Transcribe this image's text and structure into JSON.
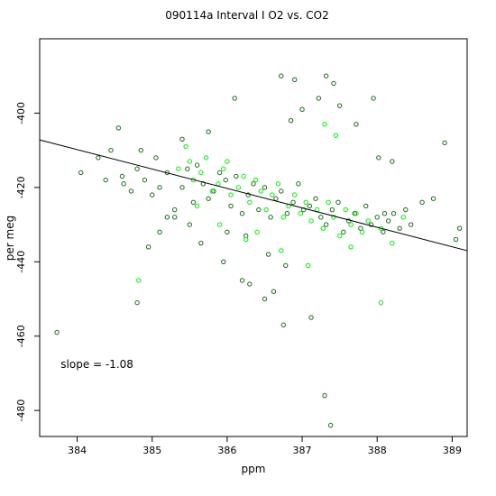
{
  "chart_data": {
    "type": "scatter",
    "title": "090114a   Interval I O2 vs. CO2",
    "xlabel": "ppm",
    "ylabel": "per meg",
    "xlim": [
      383.5,
      389.2
    ],
    "ylim": [
      -487,
      -380
    ],
    "xticks": [
      384,
      385,
      386,
      387,
      388,
      389
    ],
    "yticks": [
      -400,
      -420,
      -440,
      -460,
      -480
    ],
    "xtick_labels": [
      "384",
      "385",
      "386",
      "387",
      "388",
      "389"
    ],
    "ytick_labels": [
      "-400",
      "-420",
      "-440",
      "-460",
      "-480"
    ],
    "grid": false,
    "marker": "open-circle",
    "series": [
      {
        "color": "#1a6b1a",
        "x": [
          383.73,
          384.05,
          384.28,
          384.38,
          384.45,
          384.55,
          384.62,
          384.72,
          384.8,
          384.85,
          384.9,
          385.0,
          385.05,
          385.1,
          385.2,
          385.3,
          385.4,
          385.47,
          385.55,
          385.6,
          385.68,
          385.75,
          385.82,
          385.9,
          385.98,
          386.05,
          386.12,
          386.2,
          386.28,
          386.35,
          386.42,
          386.5,
          386.58,
          386.65,
          386.72,
          386.8,
          386.88,
          386.95,
          387.02,
          387.1,
          387.18,
          387.25,
          387.32,
          387.4,
          387.48,
          387.55,
          387.62,
          387.7,
          387.78,
          387.85,
          387.92,
          388.0,
          388.08,
          388.15,
          388.22,
          388.3,
          388.38,
          388.45,
          388.6,
          388.75,
          388.9,
          389.05,
          389.1,
          384.8,
          386.1,
          386.72,
          386.9,
          387.32,
          387.42,
          387.3,
          387.38,
          387.12,
          386.75,
          385.95,
          385.65,
          386.0,
          386.3,
          386.5,
          386.62,
          386.2,
          385.5,
          385.3,
          385.1,
          384.95,
          385.75,
          386.85,
          387.0,
          387.22,
          387.5,
          387.72,
          387.95,
          388.02,
          388.2,
          388.1,
          385.4,
          384.6,
          385.2,
          386.25,
          386.55,
          386.78
        ],
        "y": [
          -459,
          -416,
          -412,
          -418,
          -410,
          -404,
          -419,
          -421,
          -415,
          -410,
          -418,
          -422,
          -412,
          -420,
          -416,
          -426,
          -420,
          -415,
          -424,
          -414,
          -419,
          -423,
          -421,
          -416,
          -418,
          -425,
          -417,
          -427,
          -422,
          -419,
          -426,
          -420,
          -428,
          -423,
          -421,
          -427,
          -424,
          -419,
          -426,
          -425,
          -423,
          -428,
          -430,
          -426,
          -424,
          -432,
          -429,
          -427,
          -431,
          -425,
          -430,
          -428,
          -432,
          -429,
          -427,
          -431,
          -426,
          -430,
          -424,
          -423,
          -408,
          -434,
          -431,
          -451,
          -396,
          -390,
          -391,
          -390,
          -392,
          -476,
          -484,
          -455,
          -457,
          -440,
          -435,
          -432,
          -446,
          -450,
          -448,
          -445,
          -430,
          -428,
          -432,
          -436,
          -405,
          -402,
          -399,
          -396,
          -398,
          -403,
          -396,
          -412,
          -413,
          -427,
          -407,
          -417,
          -428,
          -433,
          -438,
          -441
        ]
      },
      {
        "color": "#00ee00",
        "x": [
          384.82,
          385.35,
          385.45,
          385.55,
          385.65,
          385.72,
          385.8,
          385.88,
          385.95,
          386.05,
          386.15,
          386.22,
          386.3,
          386.38,
          386.45,
          386.52,
          386.6,
          386.68,
          386.75,
          386.82,
          386.9,
          386.98,
          387.05,
          387.12,
          387.2,
          387.28,
          387.35,
          387.42,
          387.5,
          387.58,
          387.65,
          387.72,
          387.8,
          387.88,
          388.05,
          388.2,
          388.35,
          385.6,
          386.0,
          386.4,
          386.72,
          387.08,
          387.3,
          387.45,
          387.65,
          388.05,
          385.5,
          385.9,
          386.25
        ],
        "y": [
          -445,
          -415,
          -409,
          -418,
          -416,
          -412,
          -421,
          -419,
          -415,
          -422,
          -420,
          -417,
          -424,
          -418,
          -421,
          -426,
          -422,
          -419,
          -428,
          -425,
          -422,
          -427,
          -424,
          -429,
          -426,
          -431,
          -424,
          -428,
          -433,
          -426,
          -430,
          -427,
          -432,
          -429,
          -431,
          -435,
          -428,
          -425,
          -413,
          -432,
          -437,
          -441,
          -403,
          -406,
          -436,
          -451,
          -413,
          -430,
          -434
        ]
      }
    ],
    "fit_line": {
      "x": [
        383.5,
        389.2
      ],
      "y": [
        -407.2,
        -437.0
      ]
    },
    "annotations": [
      {
        "text": "slope =  -1.08",
        "x": 383.78,
        "y": -468.5
      }
    ]
  }
}
